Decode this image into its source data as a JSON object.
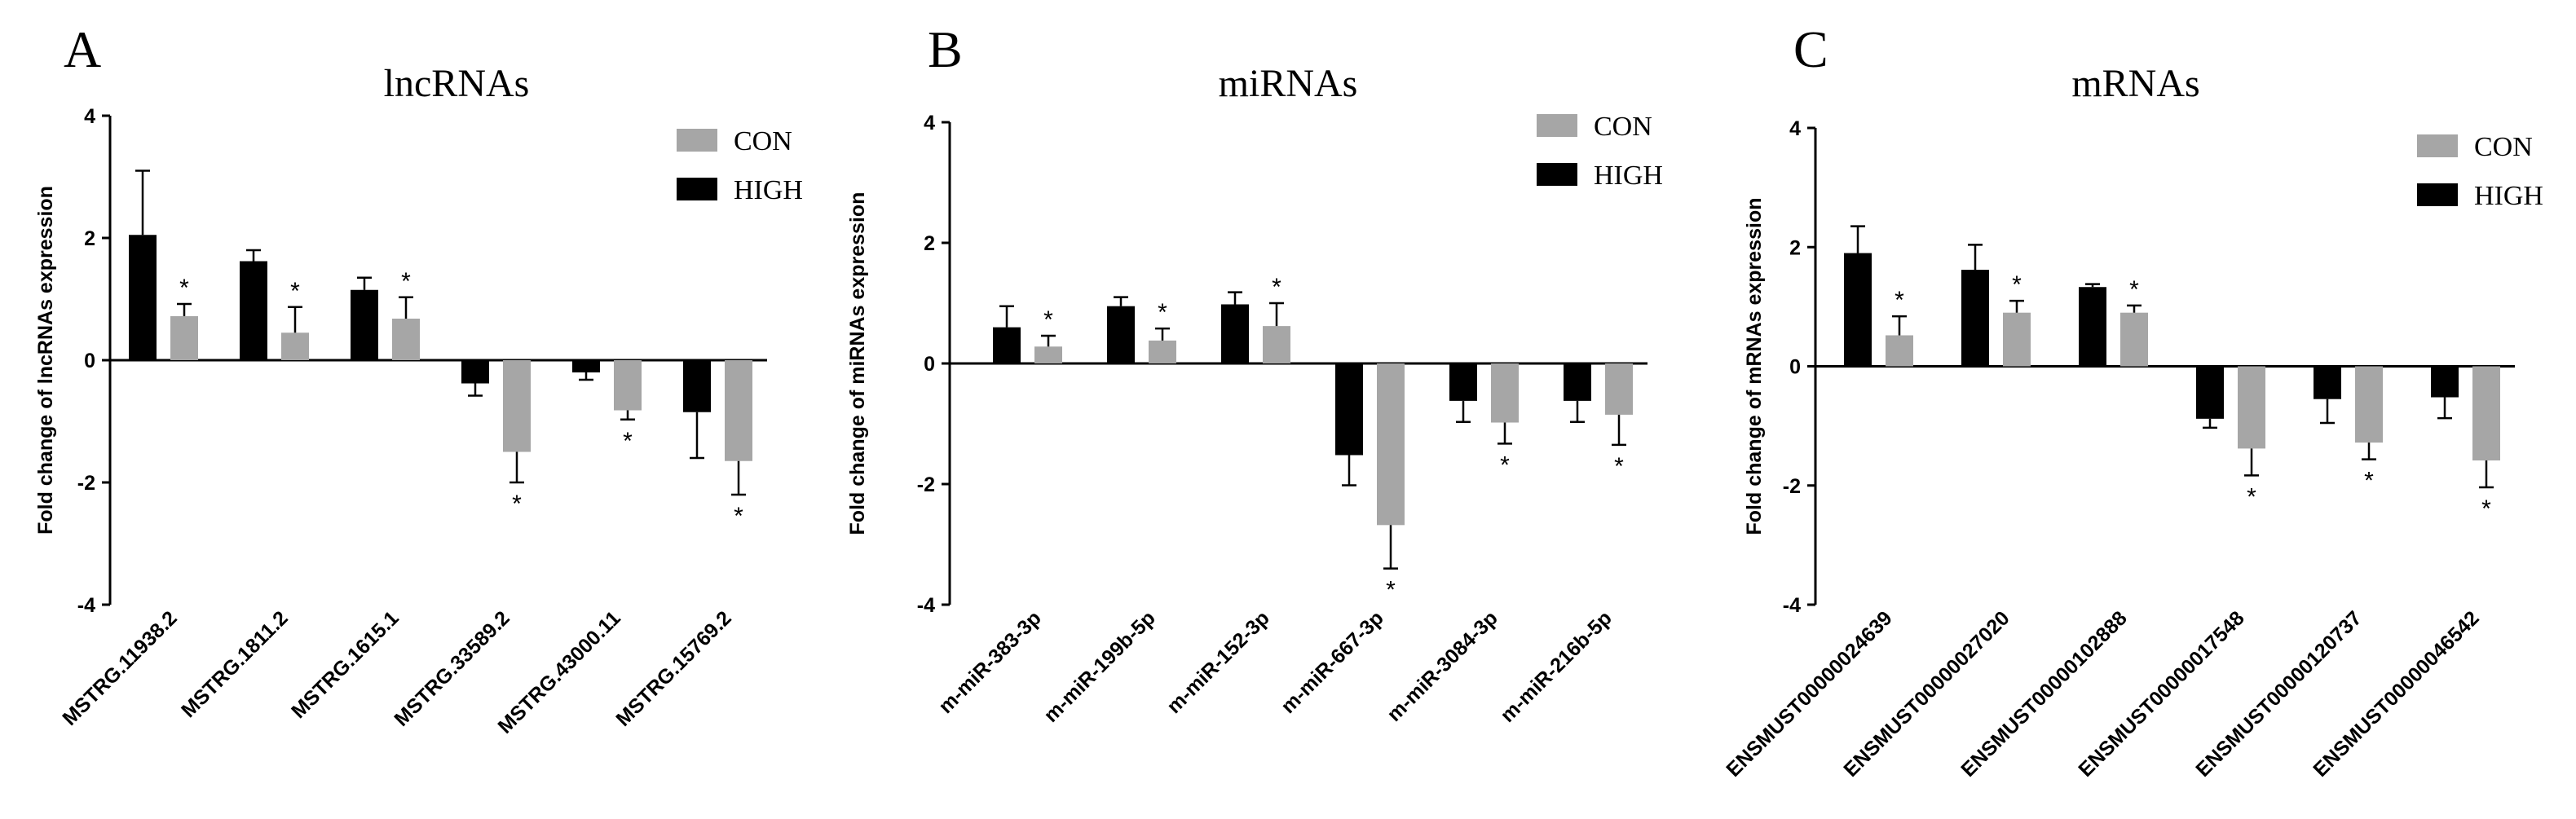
{
  "colors": {
    "con": "#a6a6a6",
    "high": "#000000",
    "axis": "#000000"
  },
  "chart_data": [
    {
      "type": "bar",
      "panel_letter": "A",
      "title": "lncRNAs",
      "ylabel": "Fold change of lncRNAs expression",
      "xlabel": "",
      "ylim": [
        -4,
        4
      ],
      "yticks": [
        "4",
        "2",
        "0",
        "-2",
        "-4"
      ],
      "categories": [
        "MSTRG.11938.2",
        "MSTRG.1811.2",
        "MSTRG.1615.1",
        "MSTRG.33589.2",
        "MSTRG.43000.11",
        "MSTRG.15769.2"
      ],
      "legend": [
        "CON",
        "HIGH"
      ],
      "legend_position": "top-right",
      "series": [
        {
          "name": "HIGH",
          "values": [
            2.05,
            1.62,
            1.15,
            -0.38,
            -0.2,
            -0.85
          ],
          "errors": [
            1.05,
            0.18,
            0.2,
            0.2,
            0.12,
            0.75
          ]
        },
        {
          "name": "CON",
          "values": [
            0.72,
            0.45,
            0.68,
            -1.5,
            -0.82,
            -1.65
          ],
          "errors": [
            0.2,
            0.42,
            0.35,
            0.5,
            0.15,
            0.55
          ],
          "significant": [
            "*",
            "*",
            "*",
            "*",
            "*",
            "*"
          ]
        }
      ]
    },
    {
      "type": "bar",
      "panel_letter": "B",
      "title": "miRNAs",
      "ylabel": "Fold change of miRNAs expression",
      "xlabel": "",
      "ylim": [
        -4,
        4
      ],
      "yticks": [
        "4",
        "2",
        "0",
        "-2",
        "-4"
      ],
      "categories": [
        "m-miR-383-3p",
        "m-miR-199b-5p",
        "m-miR-152-3p",
        "m-miR-667-3p",
        "m-miR-3084-3p",
        "m-miR-216b-5p"
      ],
      "legend": [
        "CON",
        "HIGH"
      ],
      "legend_position": "top-right",
      "series": [
        {
          "name": "HIGH",
          "values": [
            0.6,
            0.95,
            0.98,
            -1.52,
            -0.62,
            -0.62
          ],
          "errors": [
            0.35,
            0.15,
            0.2,
            0.5,
            0.35,
            0.35
          ]
        },
        {
          "name": "CON",
          "values": [
            0.28,
            0.38,
            0.62,
            -2.68,
            -0.98,
            -0.85
          ],
          "errors": [
            0.18,
            0.2,
            0.38,
            0.72,
            0.35,
            0.5
          ],
          "significant": [
            "*",
            "*",
            "*",
            "*",
            "*",
            "*"
          ]
        }
      ]
    },
    {
      "type": "bar",
      "panel_letter": "C",
      "title": "mRNAs",
      "ylabel": "Fold change of mRNAs expression",
      "xlabel": "",
      "ylim": [
        -4,
        4
      ],
      "yticks": [
        "4",
        "2",
        "0",
        "-2",
        "-4"
      ],
      "categories": [
        "ENSMUST00000024639",
        "ENSMUST00000027020",
        "ENSMUST00000102888",
        "ENSMUST00000017548",
        "ENSMUST00000120737",
        "ENSMUST00000046542"
      ],
      "legend": [
        "CON",
        "HIGH"
      ],
      "legend_position": "top-right",
      "series": [
        {
          "name": "HIGH",
          "values": [
            1.9,
            1.62,
            1.33,
            -0.88,
            -0.55,
            -0.52
          ],
          "errors": [
            0.45,
            0.42,
            0.05,
            0.15,
            0.4,
            0.35
          ]
        },
        {
          "name": "CON",
          "values": [
            0.52,
            0.9,
            0.9,
            -1.38,
            -1.28,
            -1.58
          ],
          "errors": [
            0.32,
            0.2,
            0.12,
            0.45,
            0.28,
            0.45
          ],
          "significant": [
            "*",
            "*",
            "*",
            "*",
            "*",
            "*"
          ]
        }
      ]
    }
  ]
}
